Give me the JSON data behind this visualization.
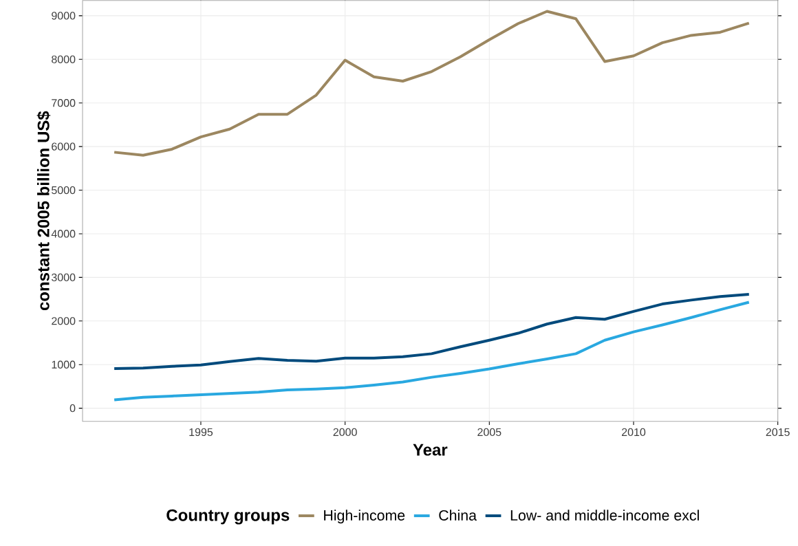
{
  "chart_data": {
    "type": "line",
    "xlabel": "Year",
    "ylabel": "constant 2005 billion US$",
    "legend_title": "Country groups",
    "x": [
      1992,
      1993,
      1994,
      1995,
      1996,
      1997,
      1998,
      1999,
      2000,
      2001,
      2002,
      2003,
      2004,
      2005,
      2006,
      2007,
      2008,
      2009,
      2010,
      2011,
      2012,
      2013,
      2014
    ],
    "series": [
      {
        "name": "High-income",
        "color": "#9c8760",
        "values": [
          5870,
          5800,
          5940,
          6220,
          6400,
          6740,
          6740,
          7180,
          7980,
          7600,
          7500,
          7720,
          8060,
          8450,
          8820,
          9100,
          8930,
          7950,
          8080,
          8380,
          8550,
          8620,
          8830
        ]
      },
      {
        "name": "China",
        "color": "#29a8e0",
        "values": [
          190,
          250,
          280,
          310,
          340,
          370,
          420,
          440,
          470,
          530,
          600,
          710,
          800,
          900,
          1020,
          1130,
          1250,
          1560,
          1750,
          1910,
          2080,
          2260,
          2430
        ]
      },
      {
        "name": "Low- and middle-income excl",
        "color": "#004a7c",
        "values": [
          910,
          920,
          960,
          990,
          1070,
          1140,
          1100,
          1080,
          1150,
          1150,
          1180,
          1250,
          1410,
          1560,
          1720,
          1930,
          2080,
          2040,
          2220,
          2390,
          2480,
          2560,
          2610
        ]
      }
    ],
    "xlim": [
      1990.9,
      2015
    ],
    "ylim": [
      -300,
      9350
    ],
    "xticks": [
      1995,
      2000,
      2005,
      2010,
      2015
    ],
    "yticks": [
      0,
      1000,
      2000,
      3000,
      4000,
      5000,
      6000,
      7000,
      8000,
      9000
    ],
    "grid": true,
    "legend": "bottom",
    "line_style": "solid"
  }
}
